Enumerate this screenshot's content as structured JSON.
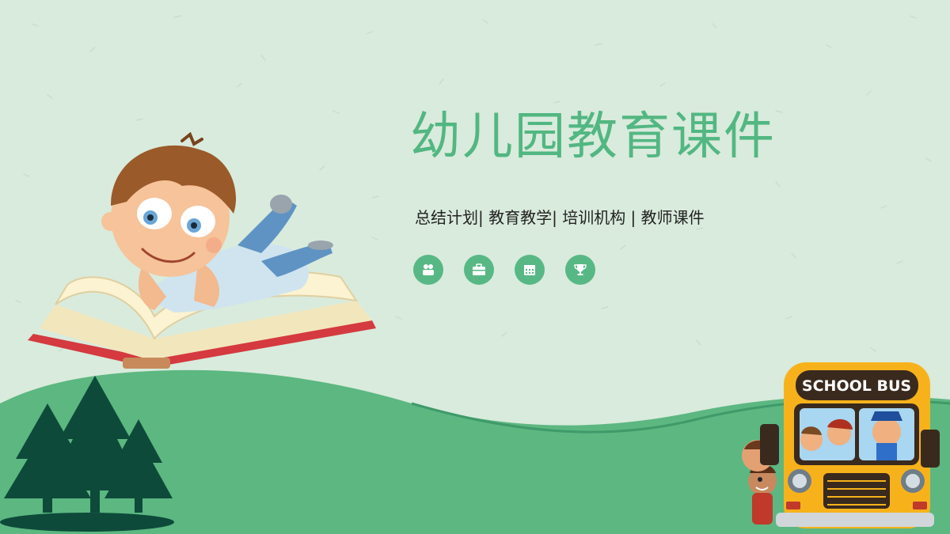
{
  "slide": {
    "title": "幼儿园教育课件",
    "subtitle": "总结计划| 教育教学| 培训机构 | 教师课件",
    "icons": [
      "people-icon",
      "briefcase-icon",
      "calendar-icon",
      "trophy-icon"
    ],
    "bus_sign": "SCHOOL BUS"
  },
  "colors": {
    "background": "#d9ebdc",
    "accent": "#52b782",
    "hill": "#5cb781",
    "tree": "#0e4a3a"
  }
}
